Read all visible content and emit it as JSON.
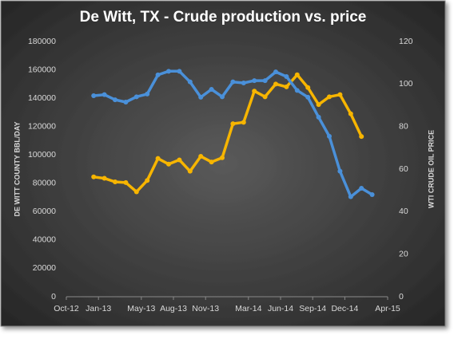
{
  "chart_data": {
    "type": "line",
    "title": "De Witt, TX - Crude production  vs. price",
    "y_label": "DE WITT COUNTY BBL/DAY",
    "y2_label": "WTI CRUDE OIL PRICE",
    "x": [
      "Jan-13",
      "Feb-13",
      "Mar-13",
      "Apr-13",
      "May-13",
      "Jun-13",
      "Jul-13",
      "Aug-13",
      "Sep-13",
      "Oct-13",
      "Nov-13",
      "Dec-13",
      "Jan-14",
      "Feb-14",
      "Mar-14",
      "Apr-14",
      "May-14",
      "Jun-14",
      "Jul-14",
      "Aug-14",
      "Sep-14",
      "Oct-14",
      "Nov-14",
      "Dec-14",
      "Jan-15",
      "Feb-15",
      "Mar-15"
    ],
    "series": [
      {
        "color": "#f7b500",
        "values": [
          84500,
          83500,
          81000,
          80500,
          74000,
          82000,
          97500,
          93500,
          96500,
          88500,
          99000,
          95000,
          98000,
          122000,
          123000,
          145000,
          141000,
          150000,
          148000,
          156500,
          147500,
          135500,
          141000,
          142500,
          129000,
          113000,
          null
        ]
      },
      {
        "color": "#4a90d9",
        "axis": "y2",
        "values": [
          94.5,
          95,
          92.6,
          91.5,
          94,
          95.3,
          104.3,
          106,
          106,
          101,
          93.8,
          97.5,
          94,
          101,
          100.5,
          101.6,
          101.6,
          105.7,
          103.5,
          97,
          93.8,
          84.4,
          75.4,
          59,
          47,
          51,
          48
        ]
      }
    ],
    "xlim": [
      "Oct-12",
      "Apr-15"
    ],
    "xticks": [
      "Oct-12",
      "Jan-13",
      "May-13",
      "Aug-13",
      "Nov-13",
      "Mar-14",
      "Jun-14",
      "Sep-14",
      "Dec-14",
      "Apr-15"
    ],
    "ylim": [
      0,
      180000
    ],
    "yticks": [
      0,
      20000,
      40000,
      60000,
      80000,
      100000,
      120000,
      140000,
      160000,
      180000
    ],
    "y2lim": [
      0,
      120
    ],
    "y2ticks": [
      0,
      20,
      40,
      60,
      80,
      100,
      120
    ],
    "grid": false
  }
}
